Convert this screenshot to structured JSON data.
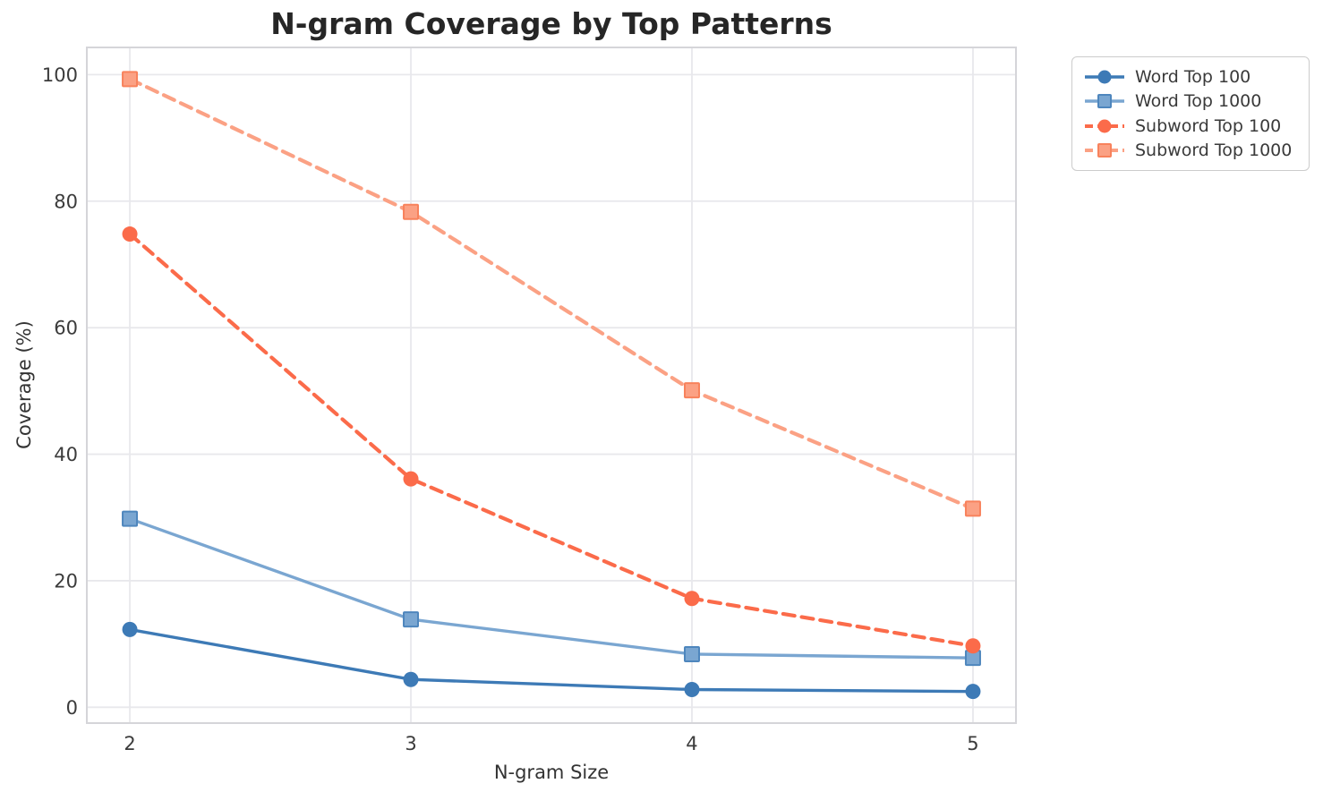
{
  "chart_data": {
    "type": "line",
    "title": "N-gram Coverage by Top Patterns",
    "xlabel": "N-gram Size",
    "ylabel": "Coverage (%)",
    "x": [
      2,
      3,
      4,
      5
    ],
    "series": [
      {
        "name": "Word Top 100",
        "values": [
          12.3,
          4.4,
          2.8,
          2.5
        ],
        "color": "#3d7ab6",
        "edge": "#35689e",
        "line": "solid",
        "marker": "circle"
      },
      {
        "name": "Word Top 1000",
        "values": [
          29.8,
          13.9,
          8.4,
          7.8
        ],
        "color": "#7aa6d1",
        "edge": "#4e86bd",
        "line": "solid",
        "marker": "square"
      },
      {
        "name": "Subword Top 100",
        "values": [
          74.8,
          36.1,
          17.2,
          9.7
        ],
        "color": "#fb6b4a",
        "edge": "#f25a38",
        "line": "dashed",
        "marker": "circle"
      },
      {
        "name": "Subword Top 1000",
        "values": [
          99.3,
          78.3,
          50.1,
          31.4
        ],
        "color": "#fba184",
        "edge": "#f8825c",
        "line": "dashed",
        "marker": "square"
      }
    ],
    "xticks": [
      2,
      3,
      4,
      5
    ],
    "yticks": [
      0,
      20,
      40,
      60,
      80,
      100
    ],
    "xlim": [
      1.847,
      5.153
    ],
    "ylim": [
      -2.5,
      104.3
    ],
    "grid": true,
    "legend_position": "outside-right",
    "grid_color": "#e8e8ec",
    "spine_color": "#d5d5d9",
    "tick_color": "#3b3b3b"
  }
}
